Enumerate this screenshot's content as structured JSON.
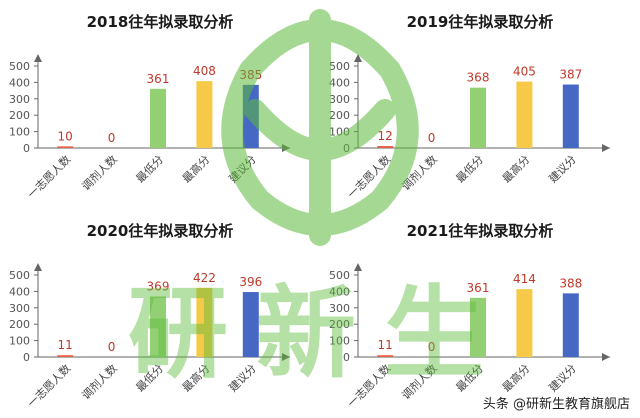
{
  "colors": {
    "bar_zhiyuan": "#e8604a",
    "bar_tiaoji": "#e8604a",
    "bar_lowest": "#93d073",
    "bar_highest": "#f7c948",
    "bar_suggest": "#4668c5",
    "label": "#c0392b",
    "watermark_green": "#5cbb3c"
  },
  "watermark": {
    "text": "研新生",
    "logo": "leaf-logo"
  },
  "credit": "头条 @研新生教育旗舰店",
  "chart_data": [
    {
      "type": "bar",
      "title": "2018往年拟录取分析",
      "categories": [
        "一志愿人数",
        "调剂人数",
        "最低分",
        "最高分",
        "建议分"
      ],
      "values": [
        10,
        0,
        361,
        408,
        385
      ],
      "ylim": [
        0,
        500
      ],
      "yticks": [
        0,
        100,
        200,
        300,
        400,
        500
      ],
      "grid": false,
      "legend": "none"
    },
    {
      "type": "bar",
      "title": "2019往年拟录取分析",
      "categories": [
        "一志愿人数",
        "调剂人数",
        "最低分",
        "最高分",
        "建议分"
      ],
      "values": [
        12,
        0,
        368,
        405,
        387
      ],
      "ylim": [
        0,
        500
      ],
      "yticks": [
        0,
        100,
        200,
        300,
        400,
        500
      ],
      "grid": false,
      "legend": "none"
    },
    {
      "type": "bar",
      "title": "2020往年拟录取分析",
      "categories": [
        "一志愿人数",
        "调剂人数",
        "最低分",
        "最高分",
        "建议分"
      ],
      "values": [
        11,
        0,
        369,
        422,
        396
      ],
      "ylim": [
        0,
        500
      ],
      "yticks": [
        0,
        100,
        200,
        300,
        400,
        500
      ],
      "grid": false,
      "legend": "none"
    },
    {
      "type": "bar",
      "title": "2021往年拟录取分析",
      "categories": [
        "一志愿人数",
        "调剂人数",
        "最低分",
        "最高分",
        "建议分"
      ],
      "values": [
        11,
        0,
        361,
        414,
        388
      ],
      "ylim": [
        0,
        500
      ],
      "yticks": [
        0,
        100,
        200,
        300,
        400,
        500
      ],
      "grid": false,
      "legend": "none"
    }
  ]
}
